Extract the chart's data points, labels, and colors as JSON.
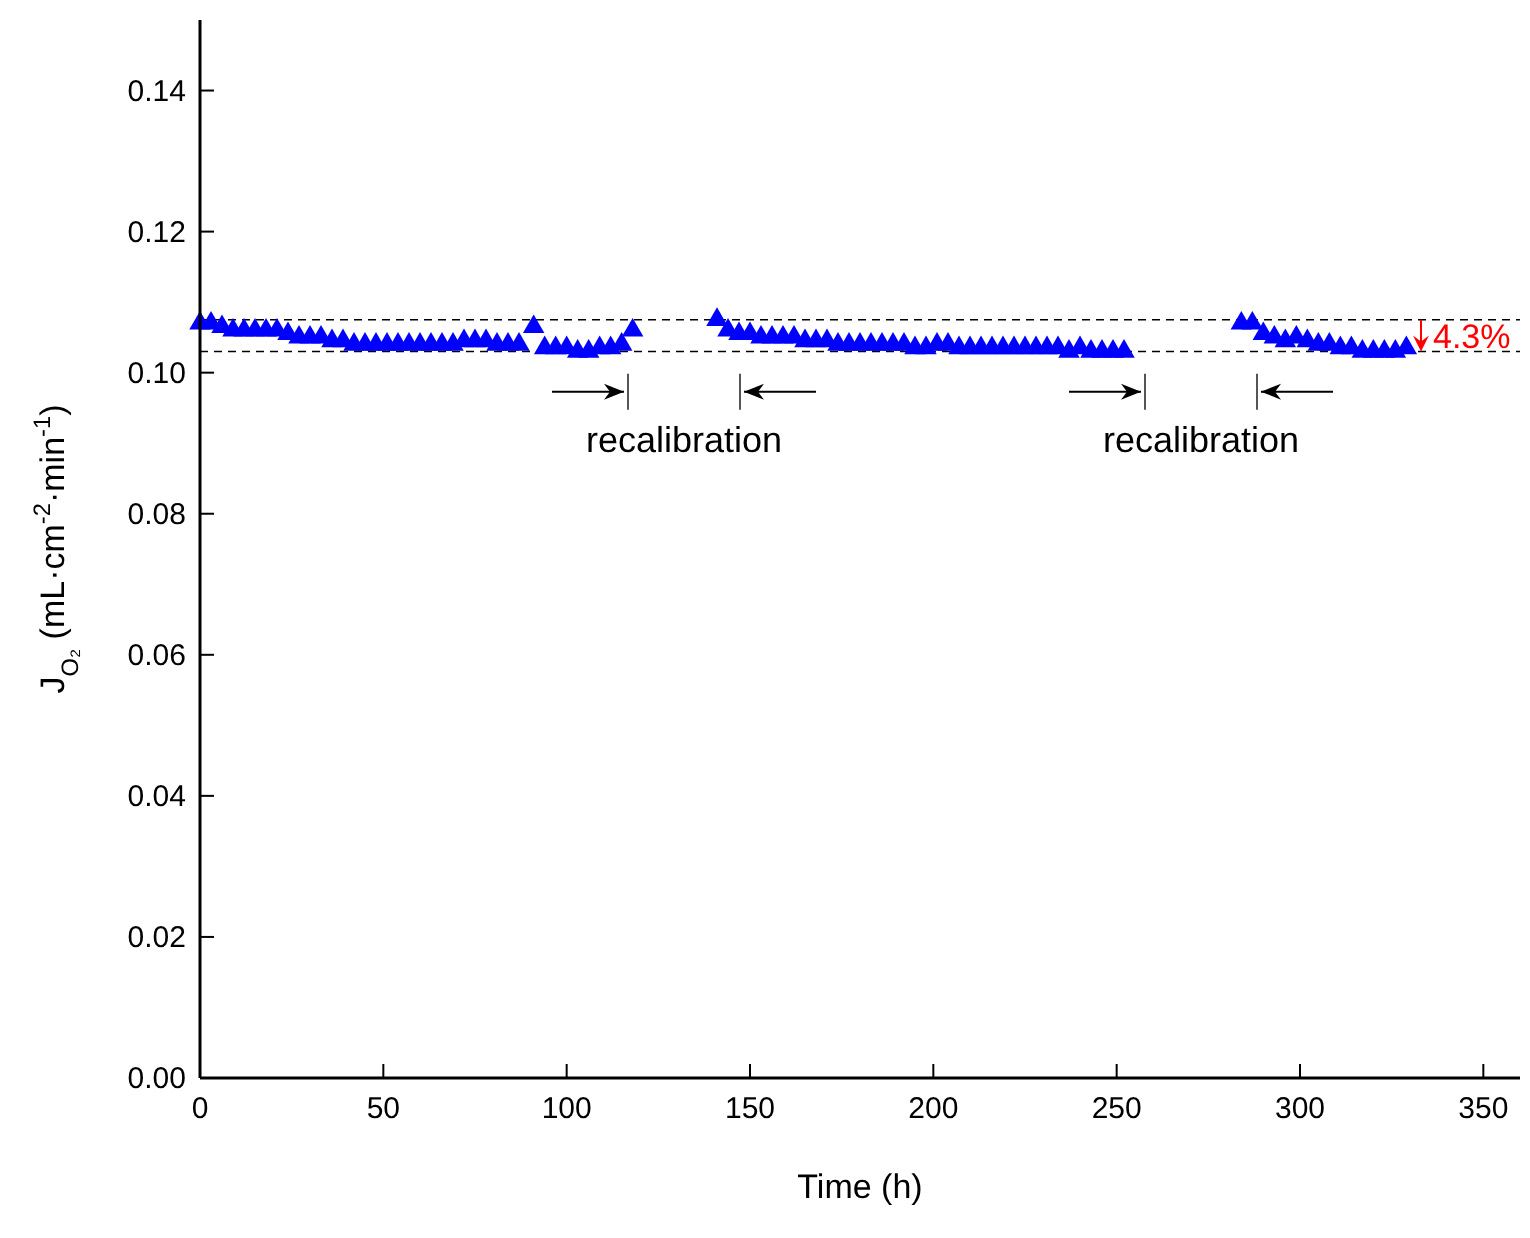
{
  "chart_data": {
    "type": "scatter",
    "xlabel": "Time (h)",
    "ylabel": "J$_{O₂}$ (mL·cm$^{-2}$·min$^{-1}$)",
    "xlim": [
      0,
      360
    ],
    "xticks": [
      0,
      50,
      100,
      150,
      200,
      250,
      300,
      350
    ],
    "ylim": [
      0,
      0.15
    ],
    "yticks": [
      {
        "value": 0,
        "label": "0.00"
      },
      {
        "value": 0.02,
        "label": "0.02"
      },
      {
        "value": 0.04,
        "label": "0.04"
      },
      {
        "value": 0.06,
        "label": "0.06"
      },
      {
        "value": 0.08,
        "label": "0.08"
      },
      {
        "value": 0.1,
        "label": "0.10"
      },
      {
        "value": 0.12,
        "label": "0.12"
      },
      {
        "value": 0.14,
        "label": "0.14"
      }
    ],
    "marker": "triangle",
    "grid": false,
    "series": [
      {
        "color": "#0000ff",
        "x": [
          0,
          3,
          6,
          9,
          12,
          15,
          18,
          21,
          24,
          27,
          30,
          33,
          36,
          39,
          42,
          45,
          48,
          51,
          54,
          57,
          60,
          63,
          66,
          69,
          72,
          75,
          78,
          81,
          84,
          87,
          91,
          94,
          97,
          100,
          103,
          106,
          109,
          112,
          115,
          118,
          141,
          144,
          147,
          150,
          153,
          156,
          159,
          162,
          165,
          168,
          171,
          174,
          177,
          180,
          183,
          186,
          189,
          192,
          195,
          198,
          201,
          204,
          207,
          210,
          213,
          216,
          219,
          222,
          225,
          228,
          231,
          234,
          237,
          240,
          243,
          246,
          249,
          252,
          284,
          287,
          290,
          293,
          296,
          299,
          302,
          305,
          308,
          311,
          314,
          317,
          320,
          323,
          326,
          329
        ],
        "values": [
          0.107,
          0.107,
          0.1065,
          0.106,
          0.106,
          0.106,
          0.106,
          0.106,
          0.1055,
          0.105,
          0.105,
          0.105,
          0.1045,
          0.1045,
          0.104,
          0.104,
          0.104,
          0.104,
          0.104,
          0.104,
          0.104,
          0.104,
          0.104,
          0.104,
          0.1045,
          0.1045,
          0.1045,
          0.104,
          0.104,
          0.104,
          0.1065,
          0.1035,
          0.1035,
          0.1035,
          0.103,
          0.103,
          0.1035,
          0.1035,
          0.104,
          0.106,
          0.1075,
          0.106,
          0.1055,
          0.1055,
          0.105,
          0.105,
          0.105,
          0.105,
          0.1045,
          0.1045,
          0.1045,
          0.104,
          0.104,
          0.104,
          0.104,
          0.104,
          0.104,
          0.104,
          0.1035,
          0.1035,
          0.104,
          0.104,
          0.1035,
          0.1035,
          0.1035,
          0.1035,
          0.1035,
          0.1035,
          0.1035,
          0.1035,
          0.1035,
          0.1035,
          0.103,
          0.1035,
          0.103,
          0.103,
          0.103,
          0.103,
          0.107,
          0.107,
          0.1055,
          0.105,
          0.1045,
          0.105,
          0.1045,
          0.104,
          0.104,
          0.1035,
          0.1035,
          0.103,
          0.103,
          0.103,
          0.103,
          0.1035
        ]
      }
    ],
    "ref_lines": [
      {
        "axis": "y",
        "value": 0.1075,
        "line_style": "dashed",
        "color": "#000000"
      },
      {
        "axis": "y",
        "value": 0.103,
        "line_style": "dashed",
        "color": "#000000"
      }
    ],
    "annotations": [
      "recalibration",
      "recalibration",
      "4.3%"
    ]
  }
}
